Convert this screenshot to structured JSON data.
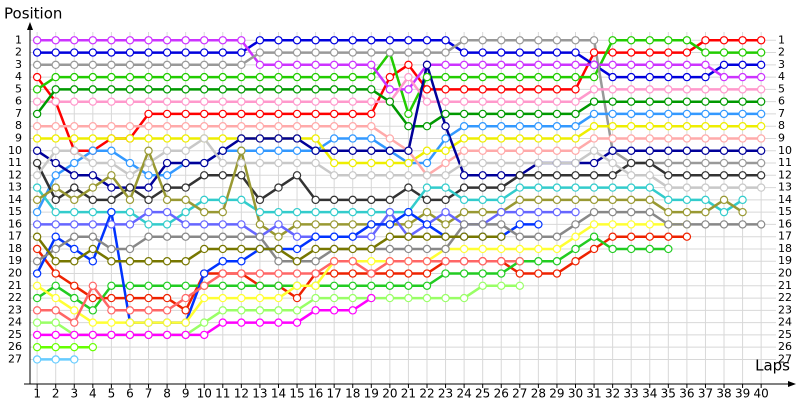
{
  "chart_data": {
    "type": "line",
    "y_label": "Position",
    "x_label": "Laps",
    "x": [
      1,
      2,
      3,
      4,
      5,
      6,
      7,
      8,
      9,
      10,
      11,
      12,
      13,
      14,
      15,
      16,
      17,
      18,
      19,
      20,
      21,
      22,
      23,
      24,
      25,
      26,
      27,
      28,
      29,
      30,
      31,
      32,
      33,
      34,
      35,
      36,
      37,
      38,
      39,
      40
    ],
    "xlim": [
      0.4,
      40.8
    ],
    "xticks": [
      1,
      2,
      3,
      4,
      5,
      6,
      7,
      8,
      9,
      10,
      11,
      12,
      13,
      14,
      15,
      16,
      17,
      18,
      19,
      20,
      21,
      22,
      23,
      24,
      25,
      26,
      27,
      28,
      29,
      30,
      31,
      32,
      33,
      34,
      35,
      36,
      37,
      38,
      39,
      40
    ],
    "ylim": [
      0,
      29
    ],
    "yticks": [
      1,
      2,
      3,
      4,
      5,
      6,
      7,
      8,
      9,
      10,
      11,
      12,
      13,
      14,
      15,
      16,
      17,
      18,
      19,
      20,
      21,
      22,
      23,
      24,
      25,
      26,
      27
    ],
    "reverse_y": true,
    "grid": true,
    "series": [
      {
        "color": "#ff0000",
        "values": [
          4,
          6,
          10,
          10,
          9,
          9,
          7,
          7,
          7,
          7,
          7,
          7,
          7,
          7,
          7,
          7,
          7,
          7,
          7,
          4,
          3,
          5,
          5,
          5,
          5,
          5,
          5,
          5,
          5,
          5,
          2,
          2,
          2,
          2,
          2,
          2,
          1,
          1,
          1,
          1
        ]
      },
      {
        "color": "#22cc00",
        "values": [
          5,
          4,
          4,
          4,
          4,
          4,
          4,
          4,
          4,
          4,
          4,
          4,
          4,
          4,
          4,
          4,
          4,
          4,
          4,
          2,
          7,
          4,
          4,
          4,
          4,
          4,
          4,
          4,
          4,
          4,
          4,
          1,
          1,
          1,
          1,
          1,
          2,
          2,
          2,
          2
        ]
      },
      {
        "color": "#0000dd",
        "values": [
          2,
          2,
          2,
          2,
          2,
          2,
          2,
          2,
          2,
          2,
          2,
          2,
          1,
          1,
          1,
          1,
          1,
          1,
          1,
          1,
          1,
          1,
          1,
          2,
          2,
          2,
          2,
          2,
          2,
          2,
          3,
          4,
          4,
          4,
          4,
          4,
          4,
          3,
          3,
          3
        ]
      },
      {
        "color": "#cc33ff",
        "values": [
          1,
          1,
          1,
          1,
          1,
          1,
          1,
          1,
          1,
          1,
          1,
          1,
          3,
          3,
          3,
          3,
          3,
          3,
          3,
          5,
          5,
          3,
          3,
          3,
          3,
          3,
          3,
          3,
          3,
          3,
          3,
          3,
          3,
          3,
          3,
          3,
          3,
          4,
          4,
          4
        ]
      },
      {
        "color": "#999999",
        "values": [
          3,
          3,
          3,
          3,
          3,
          3,
          3,
          3,
          3,
          3,
          3,
          3,
          2,
          2,
          2,
          2,
          2,
          2,
          2,
          2,
          2,
          2,
          2,
          1,
          1,
          1,
          1,
          1,
          1,
          1,
          1,
          10,
          11,
          11,
          11,
          11,
          11,
          11,
          11,
          11
        ]
      },
      {
        "color": "#ff99cc",
        "values": [
          6,
          6,
          6,
          6,
          6,
          6,
          6,
          6,
          6,
          6,
          6,
          6,
          6,
          6,
          6,
          6,
          6,
          6,
          6,
          6,
          4,
          6,
          6,
          6,
          6,
          6,
          6,
          6,
          6,
          6,
          5,
          5,
          5,
          5,
          5,
          5,
          5,
          5,
          5,
          5
        ]
      },
      {
        "color": "#009900",
        "values": [
          7,
          5,
          5,
          5,
          5,
          5,
          5,
          5,
          5,
          5,
          5,
          5,
          5,
          5,
          5,
          5,
          5,
          5,
          5,
          6,
          8,
          8,
          7,
          7,
          7,
          7,
          7,
          7,
          7,
          7,
          6,
          6,
          6,
          6,
          6,
          6,
          6,
          6,
          6,
          6
        ]
      },
      {
        "color": "#3399ff",
        "values": [
          15,
          12,
          11,
          10,
          10,
          11,
          12,
          12,
          11,
          11,
          10,
          10,
          10,
          10,
          10,
          10,
          9,
          9,
          9,
          10,
          11,
          11,
          9,
          8,
          8,
          8,
          8,
          8,
          8,
          8,
          7,
          7,
          7,
          7,
          7,
          7,
          7,
          7,
          7,
          7
        ]
      },
      {
        "color": "#eeee00",
        "values": [
          9,
          9,
          9,
          9,
          9,
          9,
          9,
          9,
          9,
          9,
          9,
          9,
          9,
          9,
          9,
          9,
          11,
          11,
          11,
          11,
          11,
          10,
          10,
          9,
          9,
          9,
          9,
          9,
          9,
          9,
          8,
          8,
          8,
          8,
          8,
          8,
          8,
          8,
          8,
          8
        ]
      },
      {
        "color": "#ffaaaa",
        "values": [
          8,
          8,
          8,
          8,
          8,
          8,
          8,
          8,
          8,
          8,
          8,
          8,
          8,
          8,
          8,
          8,
          8,
          8,
          8,
          9,
          10,
          12,
          11,
          10,
          10,
          10,
          10,
          10,
          10,
          10,
          9,
          9,
          9,
          9,
          9,
          9,
          9,
          9,
          9,
          9
        ]
      },
      {
        "color": "#000099",
        "values": [
          10,
          11,
          12,
          12,
          13,
          13,
          13,
          11,
          11,
          11,
          10,
          9,
          9,
          9,
          9,
          10,
          10,
          10,
          10,
          10,
          10,
          3,
          8,
          12,
          12,
          12,
          12,
          11,
          11,
          11,
          11,
          10,
          10,
          10,
          10,
          10,
          10,
          10,
          10,
          10
        ]
      },
      {
        "color": "#333333",
        "values": [
          11,
          14,
          13,
          14,
          14,
          13,
          14,
          13,
          13,
          12,
          12,
          12,
          14,
          13,
          12,
          14,
          14,
          14,
          14,
          14,
          13,
          14,
          14,
          13,
          13,
          13,
          12,
          12,
          12,
          12,
          12,
          12,
          11,
          11,
          12,
          12,
          12,
          12,
          12,
          12
        ]
      },
      {
        "color": "#c8c8c8",
        "values": [
          12,
          10,
          10,
          11,
          11,
          12,
          11,
          10,
          10,
          9,
          11,
          11,
          11,
          11,
          11,
          11,
          12,
          12,
          12,
          12,
          12,
          12,
          12,
          11,
          11,
          11,
          11,
          11,
          11,
          11,
          10,
          11,
          12,
          12,
          13,
          13,
          13,
          13,
          13,
          13
        ]
      },
      {
        "color": "#33cccc",
        "values": [
          13,
          15,
          15,
          15,
          15,
          15,
          16,
          16,
          15,
          14,
          14,
          14,
          15,
          15,
          15,
          15,
          15,
          15,
          15,
          15,
          15,
          13,
          13,
          14,
          14,
          14,
          13,
          13,
          13,
          13,
          13,
          13,
          13,
          13,
          14,
          14,
          14,
          15,
          14,
          null
        ]
      },
      {
        "color": "#999933",
        "values": [
          14,
          13,
          14,
          13,
          12,
          14,
          10,
          14,
          14,
          15,
          15,
          10,
          16,
          17,
          16,
          16,
          16,
          16,
          16,
          16,
          16,
          15,
          16,
          15,
          15,
          15,
          14,
          14,
          14,
          14,
          14,
          14,
          14,
          14,
          15,
          15,
          15,
          14,
          15,
          null
        ]
      },
      {
        "color": "#6666ff",
        "values": [
          16,
          16,
          16,
          16,
          16,
          16,
          15,
          15,
          16,
          16,
          16,
          16,
          17,
          16,
          17,
          17,
          17,
          17,
          17,
          15,
          17,
          16,
          15,
          16,
          16,
          15,
          15,
          15,
          15,
          15,
          null,
          null,
          null,
          null,
          null,
          null,
          null,
          null,
          null,
          null
        ]
      },
      {
        "color": "#ee2200",
        "values": [
          18,
          20,
          21,
          22,
          22,
          22,
          22,
          22,
          23,
          20,
          20,
          20,
          21,
          21,
          22,
          20,
          20,
          20,
          20,
          20,
          20,
          20,
          19,
          19,
          19,
          19,
          20,
          20,
          20,
          19,
          18,
          17,
          17,
          17,
          17,
          17,
          null,
          null,
          null,
          null
        ]
      },
      {
        "color": "#22cc22",
        "values": [
          22,
          21,
          22,
          23,
          21,
          21,
          21,
          21,
          21,
          21,
          21,
          21,
          21,
          21,
          21,
          21,
          21,
          21,
          21,
          21,
          21,
          21,
          20,
          20,
          20,
          20,
          19,
          19,
          19,
          18,
          17,
          18,
          18,
          18,
          18,
          null,
          null,
          null,
          null,
          null
        ]
      },
      {
        "color": "#0033ff",
        "values": [
          20,
          17,
          18,
          19,
          15,
          24,
          24,
          24,
          24,
          20,
          19,
          19,
          18,
          18,
          18,
          17,
          17,
          17,
          16,
          16,
          15,
          16,
          17,
          17,
          17,
          17,
          16,
          16,
          null,
          null,
          null,
          null,
          null,
          null,
          null,
          null,
          null,
          null,
          null,
          null
        ]
      },
      {
        "color": "#ffff33",
        "values": [
          21,
          22,
          23,
          24,
          24,
          24,
          24,
          24,
          24,
          22,
          22,
          22,
          22,
          22,
          21,
          21,
          19,
          19,
          19,
          19,
          19,
          19,
          18,
          18,
          18,
          18,
          18,
          18,
          18,
          17,
          16,
          16,
          16,
          16,
          16,
          16,
          null,
          null,
          null,
          null
        ]
      },
      {
        "color": "#888888",
        "values": [
          19,
          18,
          17,
          17,
          18,
          18,
          17,
          17,
          17,
          17,
          17,
          17,
          17,
          19,
          19,
          19,
          18,
          18,
          18,
          18,
          18,
          18,
          18,
          16,
          16,
          16,
          17,
          17,
          17,
          16,
          15,
          15,
          15,
          15,
          16,
          16,
          16,
          16,
          16,
          16
        ]
      },
      {
        "color": "#777700",
        "values": [
          17,
          19,
          19,
          18,
          19,
          19,
          19,
          19,
          19,
          18,
          18,
          18,
          18,
          18,
          19,
          18,
          18,
          18,
          18,
          17,
          17,
          17,
          17,
          17,
          17,
          17,
          null,
          null,
          null,
          null,
          null,
          null,
          null,
          null,
          null,
          null,
          null,
          null,
          null,
          null
        ]
      },
      {
        "color": "#ff6666",
        "values": [
          23,
          23,
          24,
          21,
          23,
          23,
          23,
          23,
          22,
          21,
          20,
          20,
          20,
          20,
          20,
          20,
          19,
          19,
          20,
          19,
          19,
          19,
          19,
          19,
          19,
          19,
          19,
          null,
          null,
          null,
          null,
          null,
          null,
          null,
          null,
          null,
          null,
          null,
          null,
          null
        ]
      },
      {
        "color": "#99ff66",
        "values": [
          24,
          24,
          25,
          25,
          25,
          25,
          25,
          25,
          25,
          24,
          23,
          23,
          23,
          23,
          23,
          22,
          22,
          22,
          22,
          22,
          22,
          22,
          22,
          22,
          21,
          21,
          21,
          null,
          null,
          null,
          null,
          null,
          null,
          null,
          null,
          null,
          null,
          null,
          null,
          null
        ]
      },
      {
        "color": "#ff00ff",
        "values": [
          25,
          25,
          25,
          25,
          25,
          25,
          25,
          25,
          25,
          25,
          24,
          24,
          24,
          24,
          24,
          23,
          23,
          23,
          22,
          null,
          null,
          null,
          null,
          null,
          null,
          null,
          null,
          null,
          null,
          null,
          null,
          null,
          null,
          null,
          null,
          null,
          null,
          null,
          null,
          null
        ]
      },
      {
        "color": "#66ff00",
        "values": [
          26,
          26,
          26,
          26,
          null,
          null,
          null,
          null,
          null,
          null,
          null,
          null,
          null,
          null,
          null,
          null,
          null,
          null,
          null,
          null,
          null,
          null,
          null,
          null,
          null,
          null,
          null,
          null,
          null,
          null,
          null,
          null,
          null,
          null,
          null,
          null,
          null,
          null,
          null,
          null
        ]
      },
      {
        "color": "#66ccff",
        "values": [
          27,
          27,
          27,
          null,
          null,
          null,
          null,
          null,
          null,
          null,
          null,
          null,
          null,
          null,
          null,
          null,
          null,
          null,
          null,
          null,
          null,
          null,
          null,
          null,
          null,
          null,
          null,
          null,
          null,
          null,
          null,
          null,
          null,
          null,
          null,
          null,
          null,
          null,
          null,
          null
        ]
      }
    ]
  }
}
